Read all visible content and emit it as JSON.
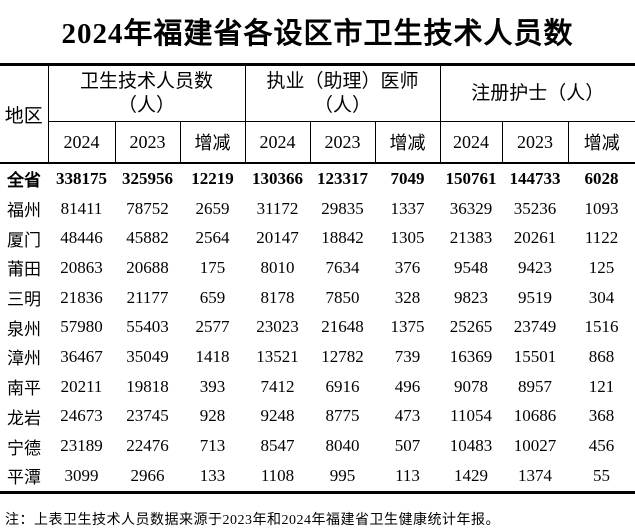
{
  "title": "2024年福建省各设区市卫生技术人员数",
  "colors": {
    "background": "#ffffff",
    "text": "#000000",
    "border": "#000000"
  },
  "table": {
    "region_header": "地区",
    "groups": [
      {
        "name": "health-technical-personnel",
        "lines": [
          "卫生技术人员数",
          "（人）"
        ]
      },
      {
        "name": "licensed-assistant-physicians",
        "lines": [
          "执业（助理）医师",
          "（人）"
        ]
      },
      {
        "name": "registered-nurses",
        "lines": [
          "注册护士（人）",
          ""
        ]
      }
    ],
    "sub_headers": [
      "2024",
      "2023",
      "增减",
      "2024",
      "2023",
      "增减",
      "2024",
      "2023",
      "增减"
    ],
    "rows": [
      {
        "region": "全省",
        "bold": true,
        "values": [
          338175,
          325956,
          12219,
          130366,
          123317,
          7049,
          150761,
          144733,
          6028
        ]
      },
      {
        "region": "福州",
        "bold": false,
        "values": [
          81411,
          78752,
          2659,
          31172,
          29835,
          1337,
          36329,
          35236,
          1093
        ]
      },
      {
        "region": "厦门",
        "bold": false,
        "values": [
          48446,
          45882,
          2564,
          20147,
          18842,
          1305,
          21383,
          20261,
          1122
        ]
      },
      {
        "region": "莆田",
        "bold": false,
        "values": [
          20863,
          20688,
          175,
          8010,
          7634,
          376,
          9548,
          9423,
          125
        ]
      },
      {
        "region": "三明",
        "bold": false,
        "values": [
          21836,
          21177,
          659,
          8178,
          7850,
          328,
          9823,
          9519,
          304
        ]
      },
      {
        "region": "泉州",
        "bold": false,
        "values": [
          57980,
          55403,
          2577,
          23023,
          21648,
          1375,
          25265,
          23749,
          1516
        ]
      },
      {
        "region": "漳州",
        "bold": false,
        "values": [
          36467,
          35049,
          1418,
          13521,
          12782,
          739,
          16369,
          15501,
          868
        ]
      },
      {
        "region": "南平",
        "bold": false,
        "values": [
          20211,
          19818,
          393,
          7412,
          6916,
          496,
          9078,
          8957,
          121
        ]
      },
      {
        "region": "龙岩",
        "bold": false,
        "values": [
          24673,
          23745,
          928,
          9248,
          8775,
          473,
          11054,
          10686,
          368
        ]
      },
      {
        "region": "宁德",
        "bold": false,
        "values": [
          23189,
          22476,
          713,
          8547,
          8040,
          507,
          10483,
          10027,
          456
        ]
      },
      {
        "region": "平潭",
        "bold": false,
        "values": [
          3099,
          2966,
          133,
          1108,
          995,
          113,
          1429,
          1374,
          55
        ]
      }
    ]
  },
  "note": "注：上表卫生技术人员数据来源于2023年和2024年福建省卫生健康统计年报。"
}
